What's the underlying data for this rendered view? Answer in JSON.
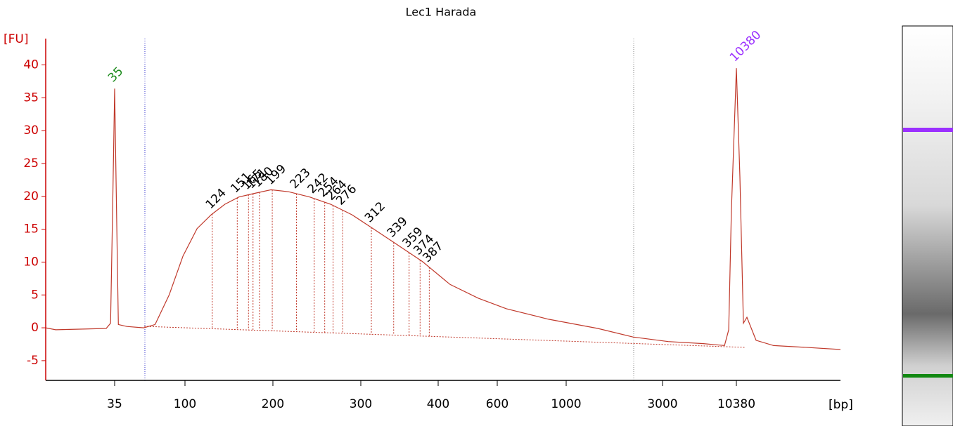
{
  "chart_data": {
    "type": "line",
    "title": "Lec1 Harada",
    "y_label": "[FU]",
    "x_label": "[bp]",
    "x_scale": "log",
    "xlim": [
      13,
      59600
    ],
    "ylim": [
      -8,
      44
    ],
    "yticks": [
      -5,
      0,
      5,
      10,
      15,
      20,
      25,
      30,
      35,
      40
    ],
    "xticks": [
      35,
      100,
      200,
      300,
      400,
      600,
      1000,
      3000,
      10380
    ],
    "series": [
      {
        "color": "#c0392b",
        "x": [
          13,
          15,
          31,
          33,
          34,
          35,
          36,
          37,
          42,
          54,
          64,
          79,
          97,
          110,
          123,
          137,
          153,
          171,
          197,
          215,
          237,
          261,
          288,
          314,
          339,
          377,
          434,
          527,
          642,
          878,
          1434,
          2140,
          3300,
          5960,
          8500,
          9120,
          9540,
          10380,
          11010,
          11680,
          12390,
          14450,
          19410,
          35000,
          59600
        ],
        "values": [
          0,
          -0.3,
          -0.1,
          0.7,
          17.8,
          36.4,
          17.8,
          0.5,
          0.2,
          0,
          0.5,
          5,
          10.9,
          15.1,
          17.2,
          18.8,
          19.9,
          20.4,
          21,
          20.7,
          19.9,
          18.8,
          17.2,
          15.1,
          13,
          10.1,
          6.6,
          4.5,
          2.9,
          1.3,
          -0.1,
          -1.4,
          -2.1,
          -2.4,
          -2.7,
          -0.3,
          17.8,
          39.5,
          23,
          0.7,
          1.6,
          -1.9,
          -2.7,
          -3,
          -3.3
        ]
      }
    ],
    "markers": [
      {
        "size": 35,
        "color": "#1a8a1a"
      },
      {
        "size": 10380,
        "color": "#9b30ff"
      }
    ],
    "peaks": [
      124,
      151,
      165,
      171,
      180,
      199,
      223,
      242,
      254,
      264,
      276,
      312,
      339,
      359,
      374,
      387
    ],
    "peak_color": "#000000"
  }
}
